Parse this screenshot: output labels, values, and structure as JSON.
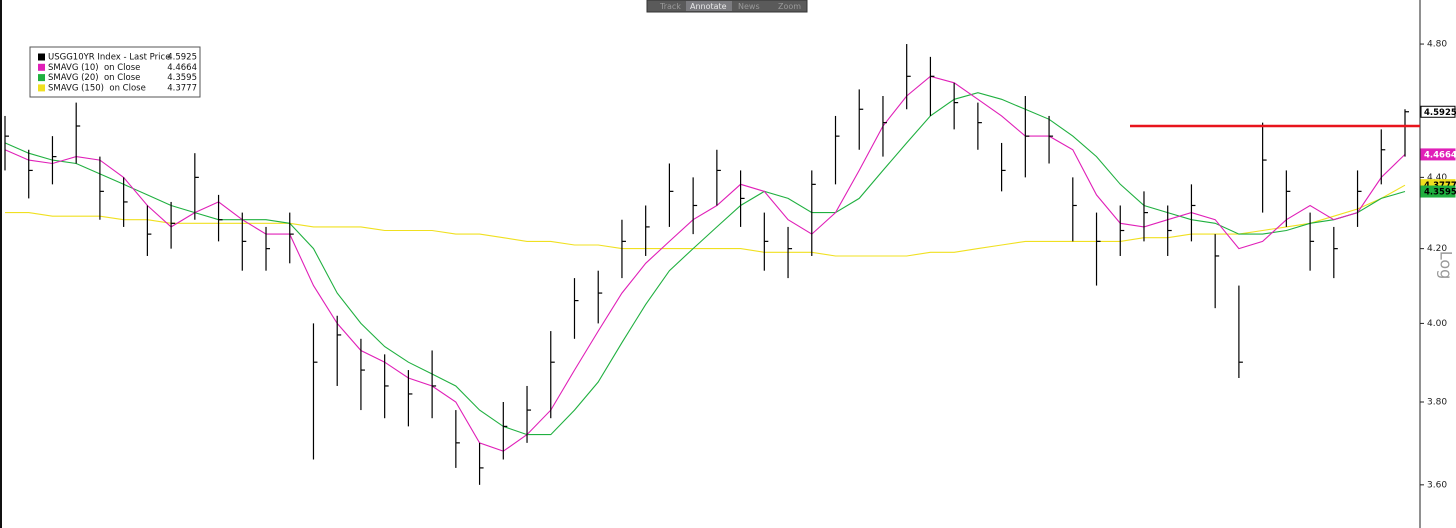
{
  "toolbar": [
    "Track",
    "Annotate",
    "News",
    "Zoom"
  ],
  "chart_data": {
    "type": "ohlc",
    "scale": "log",
    "axis_label": "Log",
    "ylim": [
      3.5,
      4.94
    ],
    "yticks": [
      {
        "value": 3.6,
        "label": "3.60"
      },
      {
        "value": 3.8,
        "label": "3.80"
      },
      {
        "value": 4.0,
        "label": "4.00"
      },
      {
        "value": 4.2,
        "label": "4.20"
      },
      {
        "value": 4.4,
        "label": "4.40"
      },
      {
        "value": 4.8,
        "label": "4.80"
      }
    ],
    "annotation_line": {
      "value": 4.55,
      "color": "#e8141c"
    },
    "series": [
      {
        "name": "USGG10YR Index - Last Price",
        "color": "#000000",
        "high": [
          4.58,
          4.48,
          4.52,
          4.62,
          4.46,
          4.4,
          4.32,
          4.33,
          4.47,
          4.35,
          4.3,
          4.26,
          4.3,
          4.0,
          4.02,
          3.96,
          3.92,
          3.88,
          3.93,
          3.78,
          3.7,
          3.8,
          3.84,
          3.98,
          4.12,
          4.14,
          4.28,
          4.32,
          4.44,
          4.4,
          4.48,
          4.42,
          4.3,
          4.26,
          4.42,
          4.58,
          4.66,
          4.64,
          4.8,
          4.76,
          4.68,
          4.62,
          4.5,
          4.64,
          4.58,
          4.4,
          4.3,
          4.32,
          4.36,
          4.32,
          4.38,
          4.24,
          4.1,
          4.56,
          4.42,
          4.3,
          4.26,
          4.42,
          4.54,
          4.6
        ],
        "low": [
          4.42,
          4.34,
          4.38,
          4.44,
          4.28,
          4.26,
          4.18,
          4.2,
          4.28,
          4.22,
          4.14,
          4.14,
          4.16,
          3.66,
          3.84,
          3.78,
          3.76,
          3.74,
          3.76,
          3.64,
          3.6,
          3.66,
          3.7,
          3.76,
          3.96,
          4.0,
          4.12,
          4.18,
          4.26,
          4.24,
          4.32,
          4.26,
          4.14,
          4.12,
          4.18,
          4.38,
          4.48,
          4.46,
          4.6,
          4.58,
          4.54,
          4.48,
          4.36,
          4.4,
          4.44,
          4.22,
          4.1,
          4.18,
          4.22,
          4.18,
          4.22,
          4.04,
          3.86,
          4.3,
          4.26,
          4.14,
          4.12,
          4.26,
          4.38,
          4.46
        ],
        "close": [
          4.52,
          4.42,
          4.46,
          4.55,
          4.36,
          4.33,
          4.24,
          4.27,
          4.4,
          4.28,
          4.22,
          4.2,
          4.24,
          3.9,
          3.97,
          3.88,
          3.84,
          3.82,
          3.84,
          3.7,
          3.64,
          3.74,
          3.78,
          3.9,
          4.06,
          4.08,
          4.22,
          4.26,
          4.36,
          4.32,
          4.42,
          4.34,
          4.22,
          4.2,
          4.38,
          4.52,
          4.6,
          4.56,
          4.7,
          4.7,
          4.62,
          4.56,
          4.42,
          4.52,
          4.52,
          4.32,
          4.22,
          4.25,
          4.3,
          4.25,
          4.32,
          4.18,
          3.9,
          4.45,
          4.36,
          4.22,
          4.2,
          4.36,
          4.48,
          4.5925
        ]
      },
      {
        "name": "SMAVG (10)  on Close",
        "color": "#e020b8",
        "values": [
          4.48,
          4.45,
          4.44,
          4.46,
          4.45,
          4.4,
          4.32,
          4.26,
          4.3,
          4.33,
          4.28,
          4.24,
          4.24,
          4.1,
          4.0,
          3.93,
          3.9,
          3.86,
          3.84,
          3.8,
          3.7,
          3.68,
          3.72,
          3.78,
          3.88,
          3.98,
          4.08,
          4.16,
          4.22,
          4.28,
          4.32,
          4.38,
          4.36,
          4.28,
          4.24,
          4.3,
          4.42,
          4.55,
          4.64,
          4.7,
          4.68,
          4.63,
          4.58,
          4.52,
          4.52,
          4.48,
          4.35,
          4.27,
          4.26,
          4.28,
          4.3,
          4.28,
          4.2,
          4.22,
          4.28,
          4.32,
          4.28,
          4.3,
          4.4,
          4.4664
        ]
      },
      {
        "name": "SMAVG (20)  on Close",
        "color": "#20b040",
        "values": [
          4.5,
          4.47,
          4.45,
          4.44,
          4.41,
          4.38,
          4.35,
          4.32,
          4.3,
          4.28,
          4.28,
          4.28,
          4.27,
          4.2,
          4.08,
          4.0,
          3.94,
          3.9,
          3.87,
          3.84,
          3.78,
          3.74,
          3.72,
          3.72,
          3.78,
          3.85,
          3.95,
          4.05,
          4.14,
          4.2,
          4.26,
          4.32,
          4.36,
          4.34,
          4.3,
          4.3,
          4.34,
          4.42,
          4.5,
          4.58,
          4.63,
          4.65,
          4.63,
          4.6,
          4.57,
          4.52,
          4.46,
          4.38,
          4.32,
          4.3,
          4.28,
          4.27,
          4.24,
          4.24,
          4.25,
          4.27,
          4.28,
          4.3,
          4.34,
          4.3595
        ]
      },
      {
        "name": "SMAVG (150)  on Close",
        "color": "#f0e020",
        "values": [
          4.3,
          4.3,
          4.29,
          4.29,
          4.29,
          4.28,
          4.28,
          4.27,
          4.27,
          4.27,
          4.27,
          4.27,
          4.27,
          4.26,
          4.26,
          4.26,
          4.25,
          4.25,
          4.25,
          4.24,
          4.24,
          4.23,
          4.22,
          4.22,
          4.21,
          4.21,
          4.2,
          4.2,
          4.2,
          4.2,
          4.2,
          4.2,
          4.19,
          4.19,
          4.19,
          4.18,
          4.18,
          4.18,
          4.18,
          4.19,
          4.19,
          4.2,
          4.21,
          4.22,
          4.22,
          4.22,
          4.22,
          4.22,
          4.23,
          4.23,
          4.24,
          4.24,
          4.24,
          4.25,
          4.26,
          4.27,
          4.29,
          4.31,
          4.34,
          4.3777
        ]
      }
    ]
  }
}
